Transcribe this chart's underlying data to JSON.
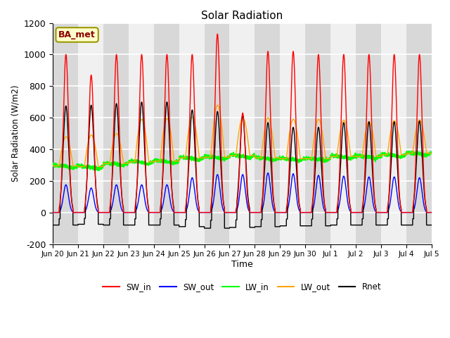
{
  "title": "Solar Radiation",
  "ylabel": "Solar Radiation (W/m2)",
  "xlabel": "Time",
  "ylim": [
    -200,
    1200
  ],
  "yticks": [
    -200,
    0,
    200,
    400,
    600,
    800,
    1000,
    1200
  ],
  "annotation_label": "BA_met",
  "legend_entries": [
    "SW_in",
    "SW_out",
    "LW_in",
    "LW_out",
    "Rnet"
  ],
  "line_colors": [
    "red",
    "blue",
    "lime",
    "orange",
    "black"
  ],
  "total_days": 15,
  "xtick_labels": [
    "Jun 20",
    "Jun 21",
    "Jun 22",
    "Jun 23",
    "Jun 24",
    "Jun 25",
    "Jun 26",
    "Jun 27",
    "Jun 28",
    "Jun 29",
    "Jun 30",
    "Jul 1",
    "Jul 2",
    "Jul 3",
    "Jul 4",
    "Jul 5"
  ],
  "background_gray": "#d8d8d8",
  "background_white": "#f0f0f0"
}
